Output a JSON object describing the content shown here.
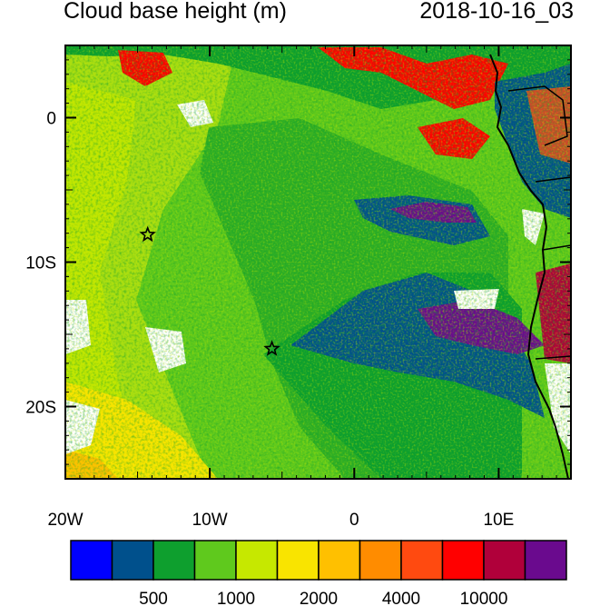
{
  "title": "Cloud base height (m)",
  "timestamp": "2018-10-16_03",
  "map": {
    "lon_range": [
      -20,
      15
    ],
    "lat_range": [
      -25,
      5
    ],
    "lon_ticks": [
      {
        "value": -20,
        "label": "20W"
      },
      {
        "value": -10,
        "label": "10W"
      },
      {
        "value": 0,
        "label": "0"
      },
      {
        "value": 10,
        "label": "10E"
      }
    ],
    "lat_ticks": [
      {
        "value": 0,
        "label": "0"
      },
      {
        "value": -10,
        "label": "10S"
      },
      {
        "value": -20,
        "label": "20S"
      }
    ],
    "markers": [
      {
        "name": "star-marker-1",
        "lon": -14.3,
        "lat": -8.1,
        "symbol": "star"
      },
      {
        "name": "star-marker-2",
        "lon": -5.7,
        "lat": -16.0,
        "symbol": "star"
      }
    ]
  },
  "colorbar": {
    "colors": [
      "#0000ff",
      "#00508c",
      "#0e9f2e",
      "#5fc91d",
      "#c6e800",
      "#f9e400",
      "#ffc000",
      "#ff8c00",
      "#ff4a10",
      "#ff0000",
      "#b0003a",
      "#6a0a8e"
    ],
    "labels": [
      {
        "after_box": 2,
        "text": "500"
      },
      {
        "after_box": 4,
        "text": "1000"
      },
      {
        "after_box": 6,
        "text": "2000"
      },
      {
        "after_box": 8,
        "text": "4000"
      },
      {
        "after_box": 10,
        "text": "10000"
      }
    ]
  }
}
